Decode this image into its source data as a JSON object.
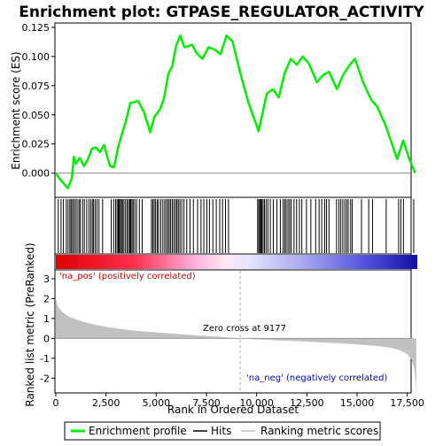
{
  "chart_data": {
    "type": "line",
    "title": "Enrichment plot: GTPASE_REGULATOR_ACTIVITY",
    "xlabel": "Rank in Ordered Dataset",
    "ylabel_top": "Enrichment score (ES)",
    "ylabel_bottom": "Ranked list metric (PreRanked)",
    "x_ticks": [
      "0",
      "2,500",
      "5,000",
      "7,500",
      "10,000",
      "12,500",
      "15,000",
      "17,500"
    ],
    "x_tick_values": [
      0,
      2500,
      5000,
      7500,
      10000,
      12500,
      15000,
      17500
    ],
    "xlim": [
      0,
      18000
    ],
    "es_ylim": [
      -0.02,
      0.128
    ],
    "es_ticks": [
      "0.000",
      "0.025",
      "0.050",
      "0.075",
      "0.100",
      "0.125"
    ],
    "es_tick_values": [
      0,
      0.025,
      0.05,
      0.075,
      0.1,
      0.125
    ],
    "metric_ylim": [
      -2.7,
      3.4
    ],
    "metric_ticks": [
      "-2",
      "-1",
      "0",
      "1",
      "2",
      "3"
    ],
    "metric_tick_values": [
      -2,
      -1,
      0,
      1,
      2,
      3
    ],
    "zero_cross_label": "Zero cross at 9177",
    "zero_cross": 9177,
    "pos_label": "'na_pos' (positively correlated)",
    "neg_label": "'na_neg' (negatively correlated)",
    "legend": [
      "Enrichment profile",
      "Hits",
      "Ranking metric scores"
    ],
    "colors": {
      "profile": "#00ee00",
      "hits": "#000000",
      "metric": "#c0c0c0",
      "pos_text": "#cc0000",
      "neg_text": "#0000cc"
    },
    "es_points": [
      [
        0,
        0
      ],
      [
        150,
        -0.004
      ],
      [
        350,
        -0.008
      ],
      [
        600,
        -0.013
      ],
      [
        800,
        -0.004
      ],
      [
        900,
        0.014
      ],
      [
        1000,
        0.008
      ],
      [
        1200,
        0.013
      ],
      [
        1400,
        0.006
      ],
      [
        1600,
        0.012
      ],
      [
        1800,
        0.021
      ],
      [
        2000,
        0.022
      ],
      [
        2200,
        0.018
      ],
      [
        2400,
        0.024
      ],
      [
        2700,
        0.006
      ],
      [
        2900,
        0.005
      ],
      [
        3100,
        0.022
      ],
      [
        3300,
        0.034
      ],
      [
        3500,
        0.045
      ],
      [
        3700,
        0.06
      ],
      [
        4100,
        0.062
      ],
      [
        4400,
        0.052
      ],
      [
        4700,
        0.035
      ],
      [
        4900,
        0.048
      ],
      [
        5200,
        0.055
      ],
      [
        5400,
        0.065
      ],
      [
        5600,
        0.085
      ],
      [
        5800,
        0.092
      ],
      [
        6000,
        0.11
      ],
      [
        6200,
        0.118
      ],
      [
        6400,
        0.108
      ],
      [
        6800,
        0.11
      ],
      [
        7000,
        0.103
      ],
      [
        7300,
        0.098
      ],
      [
        7600,
        0.108
      ],
      [
        7900,
        0.106
      ],
      [
        8200,
        0.102
      ],
      [
        8500,
        0.118
      ],
      [
        8800,
        0.113
      ],
      [
        9200,
        0.085
      ],
      [
        9600,
        0.06
      ],
      [
        10100,
        0.036
      ],
      [
        10300,
        0.052
      ],
      [
        10500,
        0.068
      ],
      [
        10800,
        0.072
      ],
      [
        11100,
        0.065
      ],
      [
        11400,
        0.086
      ],
      [
        11700,
        0.098
      ],
      [
        12000,
        0.093
      ],
      [
        12300,
        0.1
      ],
      [
        12600,
        0.094
      ],
      [
        13000,
        0.078
      ],
      [
        13300,
        0.084
      ],
      [
        13600,
        0.087
      ],
      [
        14000,
        0.072
      ],
      [
        14300,
        0.084
      ],
      [
        14600,
        0.092
      ],
      [
        14900,
        0.098
      ],
      [
        15300,
        0.078
      ],
      [
        15700,
        0.063
      ],
      [
        16000,
        0.057
      ],
      [
        16400,
        0.042
      ],
      [
        16800,
        0.022
      ],
      [
        17000,
        0.012
      ],
      [
        17300,
        0.028
      ],
      [
        17600,
        0.012
      ],
      [
        17900,
        0.0
      ]
    ],
    "hits": [
      120,
      260,
      380,
      520,
      610,
      700,
      760,
      830,
      900,
      980,
      1060,
      1150,
      1210,
      1330,
      1420,
      1540,
      1650,
      1740,
      1820,
      1880,
      1960,
      2050,
      2150,
      2330,
      2760,
      2880,
      2980,
      3050,
      3110,
      3160,
      3210,
      3270,
      3320,
      3390,
      3470,
      3550,
      3620,
      3680,
      3730,
      3790,
      3850,
      3930,
      4020,
      4160,
      4300,
      4760,
      4830,
      4900,
      4970,
      5050,
      5120,
      5230,
      5330,
      5420,
      5500,
      5580,
      5650,
      5720,
      5800,
      5880,
      5960,
      6030,
      6100,
      6180,
      6270,
      6380,
      6520,
      6680,
      6850,
      7060,
      7230,
      7370,
      7520,
      7650,
      7820,
      7990,
      8160,
      8300,
      8450,
      8600,
      10050,
      10110,
      10160,
      10210,
      10260,
      10320,
      10390,
      10470,
      10560,
      10680,
      10830,
      11010,
      11180,
      11320,
      11400,
      11470,
      11560,
      11640,
      11720,
      11860,
      11990,
      12130,
      12250,
      12480,
      12700,
      12940,
      13110,
      13240,
      13390,
      13480,
      13600,
      13980,
      14100,
      14190,
      14290,
      14390,
      14480,
      14560,
      14680,
      14760,
      15220,
      15580,
      15770,
      16450,
      17070,
      17180,
      17310,
      17820
    ],
    "metric_points": [
      [
        0,
        2.0
      ],
      [
        100,
        1.62
      ],
      [
        300,
        1.35
      ],
      [
        600,
        1.12
      ],
      [
        1000,
        0.95
      ],
      [
        1500,
        0.8
      ],
      [
        2000,
        0.68
      ],
      [
        2500,
        0.58
      ],
      [
        3000,
        0.5
      ],
      [
        4000,
        0.38
      ],
      [
        5000,
        0.3
      ],
      [
        6000,
        0.22
      ],
      [
        7000,
        0.15
      ],
      [
        8000,
        0.09
      ],
      [
        9177,
        0.0
      ],
      [
        10000,
        -0.05
      ],
      [
        11000,
        -0.1
      ],
      [
        12000,
        -0.14
      ],
      [
        13000,
        -0.19
      ],
      [
        14000,
        -0.24
      ],
      [
        15000,
        -0.3
      ],
      [
        16000,
        -0.38
      ],
      [
        16700,
        -0.48
      ],
      [
        17200,
        -0.62
      ],
      [
        17500,
        -0.8
      ],
      [
        17700,
        -1.05
      ],
      [
        17850,
        -1.5
      ],
      [
        17950,
        -2.55
      ]
    ]
  }
}
